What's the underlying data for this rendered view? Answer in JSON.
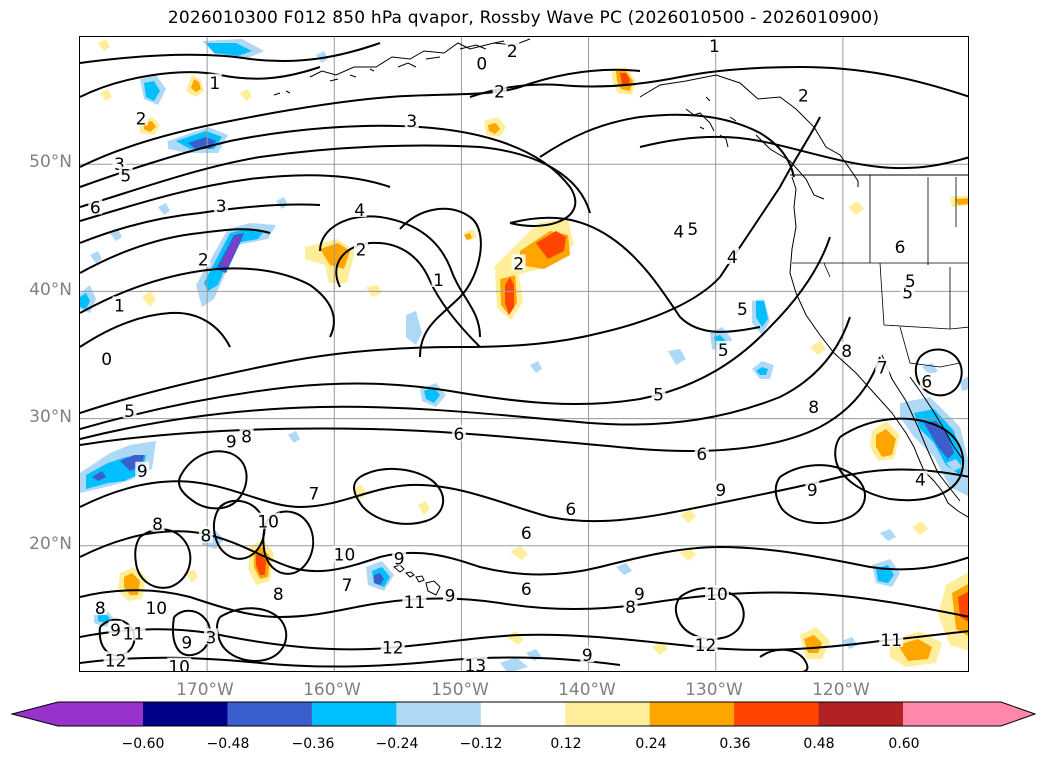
{
  "title": "2026010300 F012 850 hPa qvapor, Rossby Wave PC (2026010500 - 2026010900)",
  "map": {
    "projection": "PlateCarree",
    "extent": {
      "lon_min": -180,
      "lon_max": -110,
      "lat_min": 10,
      "lat_max": 60
    },
    "gridlines": true,
    "coastlines": true,
    "state_borders": true,
    "latitude_labels": [
      {
        "text": "50°N",
        "lat": 50
      },
      {
        "text": "40°N",
        "lat": 40
      },
      {
        "text": "30°N",
        "lat": 30
      },
      {
        "text": "20°N",
        "lat": 20
      }
    ],
    "longitude_labels": [
      {
        "text": "170°W",
        "lon": -170
      },
      {
        "text": "160°W",
        "lon": -160
      },
      {
        "text": "150°W",
        "lon": -150
      },
      {
        "text": "140°W",
        "lon": -140
      },
      {
        "text": "130°W",
        "lon": -130
      },
      {
        "text": "120°W",
        "lon": -120
      }
    ],
    "contour_labels": [
      {
        "text": "1",
        "lon": -169.4,
        "lat": 56.4
      },
      {
        "text": "2",
        "lon": -175.2,
        "lat": 53.6
      },
      {
        "text": "3",
        "lon": -176.9,
        "lat": 50.0
      },
      {
        "text": "5",
        "lon": -176.4,
        "lat": 49.1
      },
      {
        "text": "6",
        "lon": -178.8,
        "lat": 46.6
      },
      {
        "text": "3",
        "lon": -168.9,
        "lat": 46.7
      },
      {
        "text": "4",
        "lon": -158.0,
        "lat": 46.4
      },
      {
        "text": "2",
        "lon": -170.3,
        "lat": 42.5
      },
      {
        "text": "1",
        "lon": -176.9,
        "lat": 38.9
      },
      {
        "text": "0",
        "lon": -177.9,
        "lat": 34.7
      },
      {
        "text": "2",
        "lon": -157.9,
        "lat": 43.3
      },
      {
        "text": "1",
        "lon": -151.8,
        "lat": 40.9
      },
      {
        "text": "2",
        "lon": -145.5,
        "lat": 42.2
      },
      {
        "text": "0",
        "lon": -148.4,
        "lat": 57.9
      },
      {
        "text": "2",
        "lon": -146.0,
        "lat": 58.9
      },
      {
        "text": "1",
        "lon": -130.1,
        "lat": 59.3
      },
      {
        "text": "2",
        "lon": -147.0,
        "lat": 55.7
      },
      {
        "text": "3",
        "lon": -153.9,
        "lat": 53.4
      },
      {
        "text": "2",
        "lon": -123.1,
        "lat": 55.4
      },
      {
        "text": "4",
        "lon": -132.9,
        "lat": 44.7
      },
      {
        "text": "5",
        "lon": -131.8,
        "lat": 44.9
      },
      {
        "text": "4",
        "lon": -128.7,
        "lat": 42.7
      },
      {
        "text": "5",
        "lon": -134.5,
        "lat": 31.9
      },
      {
        "text": "5",
        "lon": -129.4,
        "lat": 35.4
      },
      {
        "text": "5",
        "lon": -127.9,
        "lat": 38.6
      },
      {
        "text": "6",
        "lon": -115.5,
        "lat": 43.5
      },
      {
        "text": "5",
        "lon": -114.9,
        "lat": 39.9
      },
      {
        "text": "5",
        "lon": -114.7,
        "lat": 40.8
      },
      {
        "text": "7",
        "lon": -116.9,
        "lat": 34.0
      },
      {
        "text": "6",
        "lon": -113.4,
        "lat": 32.9
      },
      {
        "text": "8",
        "lon": -122.3,
        "lat": 30.9
      },
      {
        "text": "8",
        "lon": -119.7,
        "lat": 35.3
      },
      {
        "text": "4",
        "lon": -113.9,
        "lat": 25.2
      },
      {
        "text": "6",
        "lon": -131.1,
        "lat": 27.2
      },
      {
        "text": "9",
        "lon": -122.4,
        "lat": 24.4
      },
      {
        "text": "9",
        "lon": -129.6,
        "lat": 24.4
      },
      {
        "text": "6",
        "lon": -150.2,
        "lat": 28.8
      },
      {
        "text": "6",
        "lon": -141.4,
        "lat": 22.9
      },
      {
        "text": "6",
        "lon": -144.9,
        "lat": 21.0
      },
      {
        "text": "6",
        "lon": -144.9,
        "lat": 16.6
      },
      {
        "text": "5",
        "lon": -176.1,
        "lat": 30.6
      },
      {
        "text": "9",
        "lon": -168.1,
        "lat": 28.2
      },
      {
        "text": "8",
        "lon": -166.9,
        "lat": 28.6
      },
      {
        "text": "9",
        "lon": -175.1,
        "lat": 25.9
      },
      {
        "text": "7",
        "lon": -161.6,
        "lat": 24.1
      },
      {
        "text": "8",
        "lon": -173.9,
        "lat": 21.7
      },
      {
        "text": "8",
        "lon": -170.1,
        "lat": 20.8
      },
      {
        "text": "10",
        "lon": -165.2,
        "lat": 21.9
      },
      {
        "text": "10",
        "lon": -159.2,
        "lat": 19.3
      },
      {
        "text": "9",
        "lon": -154.9,
        "lat": 19.0
      },
      {
        "text": "7",
        "lon": -159.0,
        "lat": 16.9
      },
      {
        "text": "8",
        "lon": -164.4,
        "lat": 16.2
      },
      {
        "text": "9",
        "lon": -150.9,
        "lat": 16.1
      },
      {
        "text": "11",
        "lon": -153.7,
        "lat": 15.6
      },
      {
        "text": "8",
        "lon": -178.4,
        "lat": 15.1
      },
      {
        "text": "10",
        "lon": -174.0,
        "lat": 15.1
      },
      {
        "text": "9",
        "lon": -177.2,
        "lat": 13.4
      },
      {
        "text": "11",
        "lon": -175.8,
        "lat": 13.1
      },
      {
        "text": "3",
        "lon": -169.7,
        "lat": 12.8
      },
      {
        "text": "9",
        "lon": -171.6,
        "lat": 12.4
      },
      {
        "text": "12",
        "lon": -177.2,
        "lat": 11.0
      },
      {
        "text": "10",
        "lon": -172.2,
        "lat": 10.5
      },
      {
        "text": "12",
        "lon": -155.4,
        "lat": 12.0
      },
      {
        "text": "13",
        "lon": -148.9,
        "lat": 10.6
      },
      {
        "text": "9",
        "lon": -140.1,
        "lat": 11.4
      },
      {
        "text": "9",
        "lon": -136.0,
        "lat": 16.2
      },
      {
        "text": "8",
        "lon": -136.7,
        "lat": 15.2
      },
      {
        "text": "10",
        "lon": -129.9,
        "lat": 16.2
      },
      {
        "text": "12",
        "lon": -130.8,
        "lat": 12.2
      },
      {
        "text": "11",
        "lon": -116.2,
        "lat": 12.6
      }
    ]
  },
  "colorbar": {
    "ticks": [
      "−0.60",
      "−0.48",
      "−0.36",
      "−0.24",
      "−0.12",
      "0.12",
      "0.24",
      "0.36",
      "0.48",
      "0.60"
    ],
    "colors": [
      "#9932cc",
      "#00008b",
      "#3a5fcd",
      "#00bfff",
      "#add8f6",
      "#ffffff",
      "#ffee99",
      "#ffa500",
      "#ff4500",
      "#b22222",
      "#ff88aa"
    ]
  },
  "colors": {
    "contour": "#000000",
    "grid": "#9a9a9a",
    "axis_label": "#808080"
  }
}
